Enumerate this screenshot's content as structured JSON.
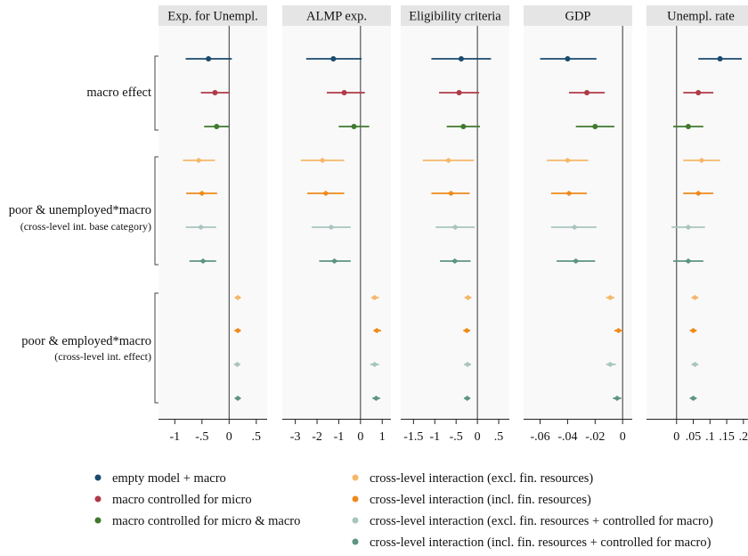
{
  "chart_data": {
    "type": "coefficient-plot",
    "group_labels": [
      {
        "lines": [
          "macro effect"
        ]
      },
      {
        "lines": [
          "poor & unemployed*macro",
          "(cross-level int. base category)"
        ]
      },
      {
        "lines": [
          "poor & employed*macro",
          "(cross-level int. effect)"
        ]
      }
    ],
    "series": [
      {
        "name": "empty model + macro",
        "color": "#1a4a6e",
        "marker": "circle"
      },
      {
        "name": "macro controlled for micro",
        "color": "#b03a48",
        "marker": "circle"
      },
      {
        "name": "macro controlled for micro & macro",
        "color": "#3f7a2e",
        "marker": "circle"
      },
      {
        "name": "cross-level interaction (excl. fin. resources)",
        "color": "#f5b76a",
        "marker": "diamond"
      },
      {
        "name": "cross-level interaction (incl. fin. resources)",
        "color": "#ef8a1a",
        "marker": "diamond"
      },
      {
        "name": "cross-level interaction (excl. fin. resources + controlled for macro)",
        "color": "#a9c5bf",
        "marker": "diamond"
      },
      {
        "name": "cross-level interaction (incl. fin. resources + controlled for macro)",
        "color": "#5d9483",
        "marker": "diamond"
      }
    ],
    "rows": [
      {
        "group": 0,
        "series": 0
      },
      {
        "group": 0,
        "series": 1
      },
      {
        "group": 0,
        "series": 2
      },
      {
        "group": 1,
        "series": 3
      },
      {
        "group": 1,
        "series": 4
      },
      {
        "group": 1,
        "series": 5
      },
      {
        "group": 1,
        "series": 6
      },
      {
        "group": 2,
        "series": 3
      },
      {
        "group": 2,
        "series": 4
      },
      {
        "group": 2,
        "series": 5
      },
      {
        "group": 2,
        "series": 6
      }
    ],
    "panels": [
      {
        "title": "Exp. for Unempl.",
        "xlim": [
          -1.3,
          0.7
        ],
        "ticks": [
          -1,
          -0.5,
          0,
          0.5
        ],
        "tick_labels": [
          "-1",
          "-.5",
          "0",
          ".5"
        ],
        "points": [
          {
            "row": 0,
            "est": -0.38,
            "lo": -0.8,
            "hi": 0.05
          },
          {
            "row": 1,
            "est": -0.26,
            "lo": -0.52,
            "hi": 0.01
          },
          {
            "row": 2,
            "est": -0.23,
            "lo": -0.46,
            "hi": 0.01
          },
          {
            "row": 3,
            "est": -0.56,
            "lo": -0.85,
            "hi": -0.26
          },
          {
            "row": 4,
            "est": -0.5,
            "lo": -0.79,
            "hi": -0.22
          },
          {
            "row": 5,
            "est": -0.52,
            "lo": -0.8,
            "hi": -0.24
          },
          {
            "row": 6,
            "est": -0.48,
            "lo": -0.73,
            "hi": -0.24
          },
          {
            "row": 7,
            "est": 0.16,
            "lo": 0.11,
            "hi": 0.21
          },
          {
            "row": 8,
            "est": 0.16,
            "lo": 0.1,
            "hi": 0.21
          },
          {
            "row": 9,
            "est": 0.15,
            "lo": 0.1,
            "hi": 0.19
          },
          {
            "row": 10,
            "est": 0.16,
            "lo": 0.11,
            "hi": 0.2
          }
        ]
      },
      {
        "title": "ALMP exp.",
        "xlim": [
          -3.6,
          1.4
        ],
        "ticks": [
          -3,
          -2,
          -1,
          0,
          1
        ],
        "tick_labels": [
          "-3",
          "-2",
          "-1",
          "0",
          "1"
        ],
        "points": [
          {
            "row": 0,
            "est": -1.25,
            "lo": -2.5,
            "hi": 0.05
          },
          {
            "row": 1,
            "est": -0.75,
            "lo": -1.55,
            "hi": 0.2
          },
          {
            "row": 2,
            "est": -0.3,
            "lo": -1.0,
            "hi": 0.4
          },
          {
            "row": 3,
            "est": -1.75,
            "lo": -2.75,
            "hi": -0.75
          },
          {
            "row": 4,
            "est": -1.6,
            "lo": -2.45,
            "hi": -0.75
          },
          {
            "row": 5,
            "est": -1.35,
            "lo": -2.25,
            "hi": -0.45
          },
          {
            "row": 6,
            "est": -1.2,
            "lo": -1.9,
            "hi": -0.45
          },
          {
            "row": 7,
            "est": 0.65,
            "lo": 0.5,
            "hi": 0.85
          },
          {
            "row": 8,
            "est": 0.75,
            "lo": 0.6,
            "hi": 0.95
          },
          {
            "row": 9,
            "est": 0.65,
            "lo": 0.45,
            "hi": 0.85
          },
          {
            "row": 10,
            "est": 0.72,
            "lo": 0.55,
            "hi": 0.9
          }
        ]
      },
      {
        "title": "Eligibility criteria",
        "xlim": [
          -1.8,
          0.75
        ],
        "ticks": [
          -1.5,
          -1,
          -0.5,
          0,
          0.5
        ],
        "tick_labels": [
          "-1.5",
          "-1",
          "-.5",
          "0",
          ".5"
        ],
        "points": [
          {
            "row": 0,
            "est": -0.38,
            "lo": -1.08,
            "hi": 0.32
          },
          {
            "row": 1,
            "est": -0.43,
            "lo": -0.9,
            "hi": 0.04
          },
          {
            "row": 2,
            "est": -0.33,
            "lo": -0.72,
            "hi": 0.06
          },
          {
            "row": 3,
            "est": -0.68,
            "lo": -1.28,
            "hi": -0.08
          },
          {
            "row": 4,
            "est": -0.62,
            "lo": -1.08,
            "hi": -0.18
          },
          {
            "row": 5,
            "est": -0.52,
            "lo": -0.98,
            "hi": -0.06
          },
          {
            "row": 6,
            "est": -0.53,
            "lo": -0.88,
            "hi": -0.16
          },
          {
            "row": 7,
            "est": -0.22,
            "lo": -0.3,
            "hi": -0.14
          },
          {
            "row": 8,
            "est": -0.25,
            "lo": -0.33,
            "hi": -0.17
          },
          {
            "row": 9,
            "est": -0.23,
            "lo": -0.31,
            "hi": -0.15
          },
          {
            "row": 10,
            "est": -0.24,
            "lo": -0.31,
            "hi": -0.17
          }
        ]
      },
      {
        "title": "GDP",
        "xlim": [
          -0.072,
          0.007
        ],
        "ticks": [
          -0.06,
          -0.04,
          -0.02,
          0
        ],
        "tick_labels": [
          "-.06",
          "-.04",
          "-.02",
          "0"
        ],
        "points": [
          {
            "row": 0,
            "est": -0.04,
            "lo": -0.06,
            "hi": -0.019
          },
          {
            "row": 1,
            "est": -0.026,
            "lo": -0.039,
            "hi": -0.013
          },
          {
            "row": 2,
            "est": -0.02,
            "lo": -0.034,
            "hi": -0.006
          },
          {
            "row": 3,
            "est": -0.04,
            "lo": -0.055,
            "hi": -0.025
          },
          {
            "row": 4,
            "est": -0.039,
            "lo": -0.052,
            "hi": -0.026
          },
          {
            "row": 5,
            "est": -0.035,
            "lo": -0.052,
            "hi": -0.019
          },
          {
            "row": 6,
            "est": -0.034,
            "lo": -0.048,
            "hi": -0.02
          },
          {
            "row": 7,
            "est": -0.009,
            "lo": -0.012,
            "hi": -0.006
          },
          {
            "row": 8,
            "est": -0.003,
            "lo": -0.006,
            "hi": 0.0
          },
          {
            "row": 9,
            "est": -0.009,
            "lo": -0.012,
            "hi": -0.005
          },
          {
            "row": 10,
            "est": -0.004,
            "lo": -0.007,
            "hi": -0.001
          }
        ]
      },
      {
        "title": "Unempl. rate",
        "xlim": [
          -0.09,
          0.235
        ],
        "ticks": [
          0,
          0.05,
          0.1,
          0.15,
          0.2
        ],
        "tick_labels": [
          "0",
          ".05",
          ".1",
          ".15",
          ".2"
        ],
        "points": [
          {
            "row": 0,
            "est": 0.13,
            "lo": 0.065,
            "hi": 0.195
          },
          {
            "row": 1,
            "est": 0.065,
            "lo": 0.02,
            "hi": 0.11
          },
          {
            "row": 2,
            "est": 0.035,
            "lo": -0.01,
            "hi": 0.08
          },
          {
            "row": 3,
            "est": 0.075,
            "lo": 0.02,
            "hi": 0.13
          },
          {
            "row": 4,
            "est": 0.065,
            "lo": 0.02,
            "hi": 0.11
          },
          {
            "row": 5,
            "est": 0.035,
            "lo": -0.015,
            "hi": 0.085
          },
          {
            "row": 6,
            "est": 0.035,
            "lo": -0.01,
            "hi": 0.08
          },
          {
            "row": 7,
            "est": 0.055,
            "lo": 0.045,
            "hi": 0.065
          },
          {
            "row": 8,
            "est": 0.05,
            "lo": 0.04,
            "hi": 0.06
          },
          {
            "row": 9,
            "est": 0.055,
            "lo": 0.045,
            "hi": 0.065
          },
          {
            "row": 10,
            "est": 0.05,
            "lo": 0.04,
            "hi": 0.06
          }
        ]
      }
    ],
    "grid": false,
    "legend_placement": "bottom"
  }
}
